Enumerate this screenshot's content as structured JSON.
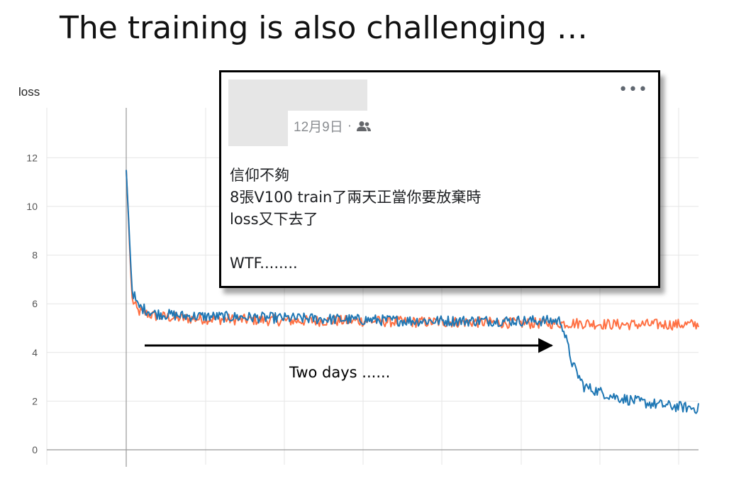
{
  "slide": {
    "title": "The training is also challenging …"
  },
  "post": {
    "date": "12月9日",
    "separator": "·",
    "audience_icon": "friends-icon",
    "menu_icon": "more-icon",
    "menu_glyph": "•••",
    "lines": [
      "信仰不夠",
      "8張V100 train了兩天正當你要放棄時",
      "loss又下去了",
      "",
      "WTF........"
    ]
  },
  "chart_data": {
    "type": "line",
    "title": "loss",
    "xlabel": "",
    "ylabel": "",
    "ylim": [
      0,
      14
    ],
    "yticks": [
      0,
      2,
      4,
      6,
      8,
      10,
      12
    ],
    "grid": true,
    "x": [
      0,
      0.01,
      0.02,
      0.05,
      0.1,
      0.2,
      0.3,
      0.4,
      0.5,
      0.6,
      0.7,
      0.76,
      0.78,
      0.8,
      0.85,
      0.9,
      0.95,
      1.0
    ],
    "series": [
      {
        "color": "#1f77b4",
        "values": [
          11.5,
          6.6,
          5.9,
          5.6,
          5.5,
          5.45,
          5.4,
          5.35,
          5.3,
          5.3,
          5.3,
          5.3,
          3.5,
          2.6,
          2.2,
          1.95,
          1.8,
          1.7
        ]
      },
      {
        "color": "#ff7043",
        "values": [
          11.5,
          6.2,
          5.7,
          5.5,
          5.4,
          5.35,
          5.3,
          5.3,
          5.25,
          5.25,
          5.2,
          5.2,
          5.2,
          5.2,
          5.15,
          5.15,
          5.15,
          5.15
        ]
      }
    ],
    "annotations": [
      {
        "text": "Two days ......"
      }
    ]
  }
}
